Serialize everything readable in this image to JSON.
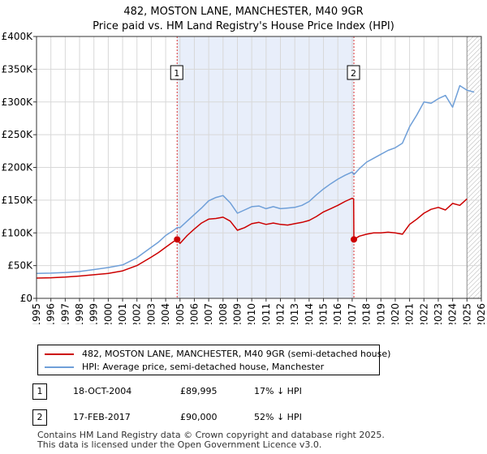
{
  "chart_data": {
    "type": "line",
    "title": "482, MOSTON LANE, MANCHESTER, M40 9GR",
    "subtitle": "Price paid vs. HM Land Registry's House Price Index (HPI)",
    "xlabel": "",
    "ylabel": "",
    "xlim": [
      1995,
      2026
    ],
    "ylim": [
      0,
      400000
    ],
    "x_ticks": [
      "1995",
      "1996",
      "1997",
      "1998",
      "1999",
      "2000",
      "2001",
      "2002",
      "2003",
      "2004",
      "2005",
      "2006",
      "2007",
      "2008",
      "2009",
      "2010",
      "2011",
      "2012",
      "2013",
      "2014",
      "2015",
      "2016",
      "2017",
      "2018",
      "2019",
      "2020",
      "2021",
      "2022",
      "2023",
      "2024",
      "2025",
      "2026"
    ],
    "y_ticks": [
      {
        "value": 0,
        "label": "£0"
      },
      {
        "value": 50000,
        "label": "£50K"
      },
      {
        "value": 100000,
        "label": "£100K"
      },
      {
        "value": 150000,
        "label": "£150K"
      },
      {
        "value": 200000,
        "label": "£200K"
      },
      {
        "value": 250000,
        "label": "£250K"
      },
      {
        "value": 300000,
        "label": "£300K"
      },
      {
        "value": 350000,
        "label": "£350K"
      },
      {
        "value": 400000,
        "label": "£400K"
      }
    ],
    "grid": true,
    "sale_shading": [
      2004.8,
      2017.12
    ],
    "forecast_from": 2025.0,
    "series": [
      {
        "name": "482, MOSTON LANE, MANCHESTER, M40 9GR (semi-detached house)",
        "color": "#cc0000",
        "x": [
          1995.0,
          1996.0,
          1997.0,
          1998.0,
          1999.0,
          2000.0,
          2001.0,
          2002.0,
          2003.0,
          2003.5,
          2004.0,
          2004.5,
          2004.8,
          2005.0,
          2005.5,
          2006.0,
          2006.5,
          2007.0,
          2007.5,
          2008.0,
          2008.5,
          2009.0,
          2009.5,
          2010.0,
          2010.5,
          2011.0,
          2011.5,
          2012.0,
          2012.5,
          2013.0,
          2013.5,
          2014.0,
          2014.5,
          2015.0,
          2015.5,
          2016.0,
          2016.5,
          2017.0,
          2017.1,
          2017.12,
          2017.5,
          2018.0,
          2018.5,
          2019.0,
          2019.5,
          2020.0,
          2020.5,
          2021.0,
          2021.5,
          2022.0,
          2022.5,
          2023.0,
          2023.5,
          2024.0,
          2024.5,
          2025.0
        ],
        "y": [
          31000,
          31500,
          32500,
          34000,
          36000,
          38000,
          42000,
          50000,
          63000,
          70000,
          78000,
          86000,
          89995,
          84000,
          96000,
          106000,
          115000,
          121000,
          122000,
          124000,
          118000,
          104000,
          108000,
          114000,
          116000,
          113000,
          115000,
          113000,
          112000,
          114000,
          116000,
          119000,
          125000,
          132000,
          137000,
          142000,
          148000,
          153000,
          152000,
          90000,
          95000,
          98000,
          100000,
          100000,
          101000,
          100000,
          98000,
          113000,
          121000,
          130000,
          136000,
          139000,
          135000,
          145000,
          142000,
          152000
        ]
      },
      {
        "name": "HPI: Average price, semi-detached house, Manchester",
        "color": "#6f9fd8",
        "x": [
          1995.0,
          1996.0,
          1997.0,
          1998.0,
          1999.0,
          2000.0,
          2001.0,
          2002.0,
          2003.0,
          2003.5,
          2004.0,
          2004.5,
          2004.8,
          2005.0,
          2005.5,
          2006.0,
          2006.5,
          2007.0,
          2007.5,
          2008.0,
          2008.5,
          2009.0,
          2009.5,
          2010.0,
          2010.5,
          2011.0,
          2011.5,
          2012.0,
          2012.5,
          2013.0,
          2013.5,
          2014.0,
          2014.5,
          2015.0,
          2015.5,
          2016.0,
          2016.5,
          2017.0,
          2017.12,
          2017.5,
          2018.0,
          2018.5,
          2019.0,
          2019.5,
          2020.0,
          2020.5,
          2021.0,
          2021.5,
          2022.0,
          2022.5,
          2023.0,
          2023.5,
          2024.0,
          2024.5,
          2025.0,
          2025.5
        ],
        "y": [
          38000,
          38500,
          39500,
          41000,
          44000,
          47000,
          51000,
          62000,
          78000,
          86000,
          96000,
          103000,
          108000,
          108000,
          118000,
          128000,
          138000,
          149000,
          154000,
          157000,
          146000,
          130000,
          135000,
          140000,
          141000,
          137000,
          140000,
          137000,
          138000,
          139000,
          142000,
          148000,
          158000,
          167000,
          175000,
          182000,
          188000,
          193000,
          189000,
          198000,
          208000,
          214000,
          220000,
          226000,
          230000,
          237000,
          262000,
          280000,
          300000,
          298000,
          305000,
          310000,
          292000,
          325000,
          318000,
          315000
        ]
      }
    ],
    "annotations": [
      {
        "label": "1",
        "x": 2004.8,
        "price": 89995
      },
      {
        "label": "2",
        "x": 2017.12,
        "price": 90000
      }
    ]
  },
  "legend": {
    "items": [
      {
        "label": "482, MOSTON LANE, MANCHESTER, M40 9GR (semi-detached house)",
        "color": "#cc0000"
      },
      {
        "label": "HPI: Average price, semi-detached house, Manchester",
        "color": "#6f9fd8"
      }
    ]
  },
  "transactions": [
    {
      "num": "1",
      "date": "18-OCT-2004",
      "price": "£89,995",
      "hpi": "17% ↓ HPI"
    },
    {
      "num": "2",
      "date": "17-FEB-2017",
      "price": "£90,000",
      "hpi": "52% ↓ HPI"
    }
  ],
  "footer": {
    "line1": "Contains HM Land Registry data © Crown copyright and database right 2025.",
    "line2": "This data is licensed under the Open Government Licence v3.0."
  }
}
